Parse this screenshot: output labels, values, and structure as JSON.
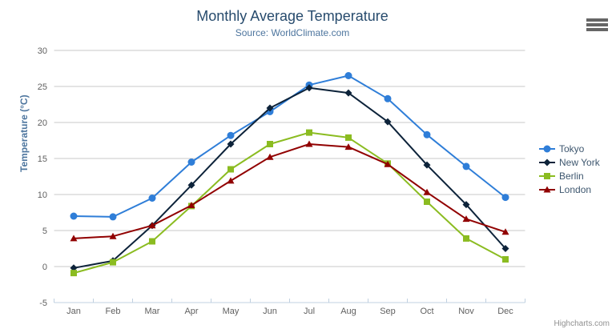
{
  "chart": {
    "title": "Monthly Average Temperature",
    "subtitle": "Source: WorldClimate.com",
    "y_axis_title": "Temperature (°C)",
    "credits": "Highcharts.com"
  },
  "theme": {
    "background": "#FFFFFF",
    "title_color": "#274b6d",
    "subtitle_color": "#4d759e",
    "axis_label_color": "#606060",
    "axis_title_color": "#4d759e",
    "grid_color": "#C9C9C9",
    "axis_line_color": "#C0D0E0",
    "legend_text_color": "#3E576F",
    "credits_color": "#909090",
    "menu_icon_color": "#666666"
  },
  "chart_data": {
    "type": "line",
    "title": "Monthly Average Temperature",
    "subtitle": "Source: WorldClimate.com",
    "xlabel": "",
    "ylabel": "Temperature (°C)",
    "ylim": [
      -5,
      30
    ],
    "ytick_step": 5,
    "grid": true,
    "legend_position": "right",
    "categories": [
      "Jan",
      "Feb",
      "Mar",
      "Apr",
      "May",
      "Jun",
      "Jul",
      "Aug",
      "Sep",
      "Oct",
      "Nov",
      "Dec"
    ],
    "series": [
      {
        "name": "Tokyo",
        "color": "#2f7ed8",
        "marker": "circle",
        "values": [
          7.0,
          6.9,
          9.5,
          14.5,
          18.2,
          21.5,
          25.2,
          26.5,
          23.3,
          18.3,
          13.9,
          9.6
        ]
      },
      {
        "name": "New York",
        "color": "#0d233a",
        "marker": "diamond",
        "values": [
          -0.2,
          0.8,
          5.7,
          11.3,
          17.0,
          22.0,
          24.8,
          24.1,
          20.1,
          14.1,
          8.6,
          2.5
        ]
      },
      {
        "name": "Berlin",
        "color": "#8bbc21",
        "marker": "square",
        "values": [
          -0.9,
          0.6,
          3.5,
          8.4,
          13.5,
          17.0,
          18.6,
          17.9,
          14.3,
          9.0,
          3.9,
          1.0
        ]
      },
      {
        "name": "London",
        "color": "#910000",
        "marker": "triangle",
        "values": [
          3.9,
          4.2,
          5.7,
          8.5,
          11.9,
          15.2,
          17.0,
          16.6,
          14.2,
          10.3,
          6.6,
          4.8
        ]
      }
    ]
  }
}
